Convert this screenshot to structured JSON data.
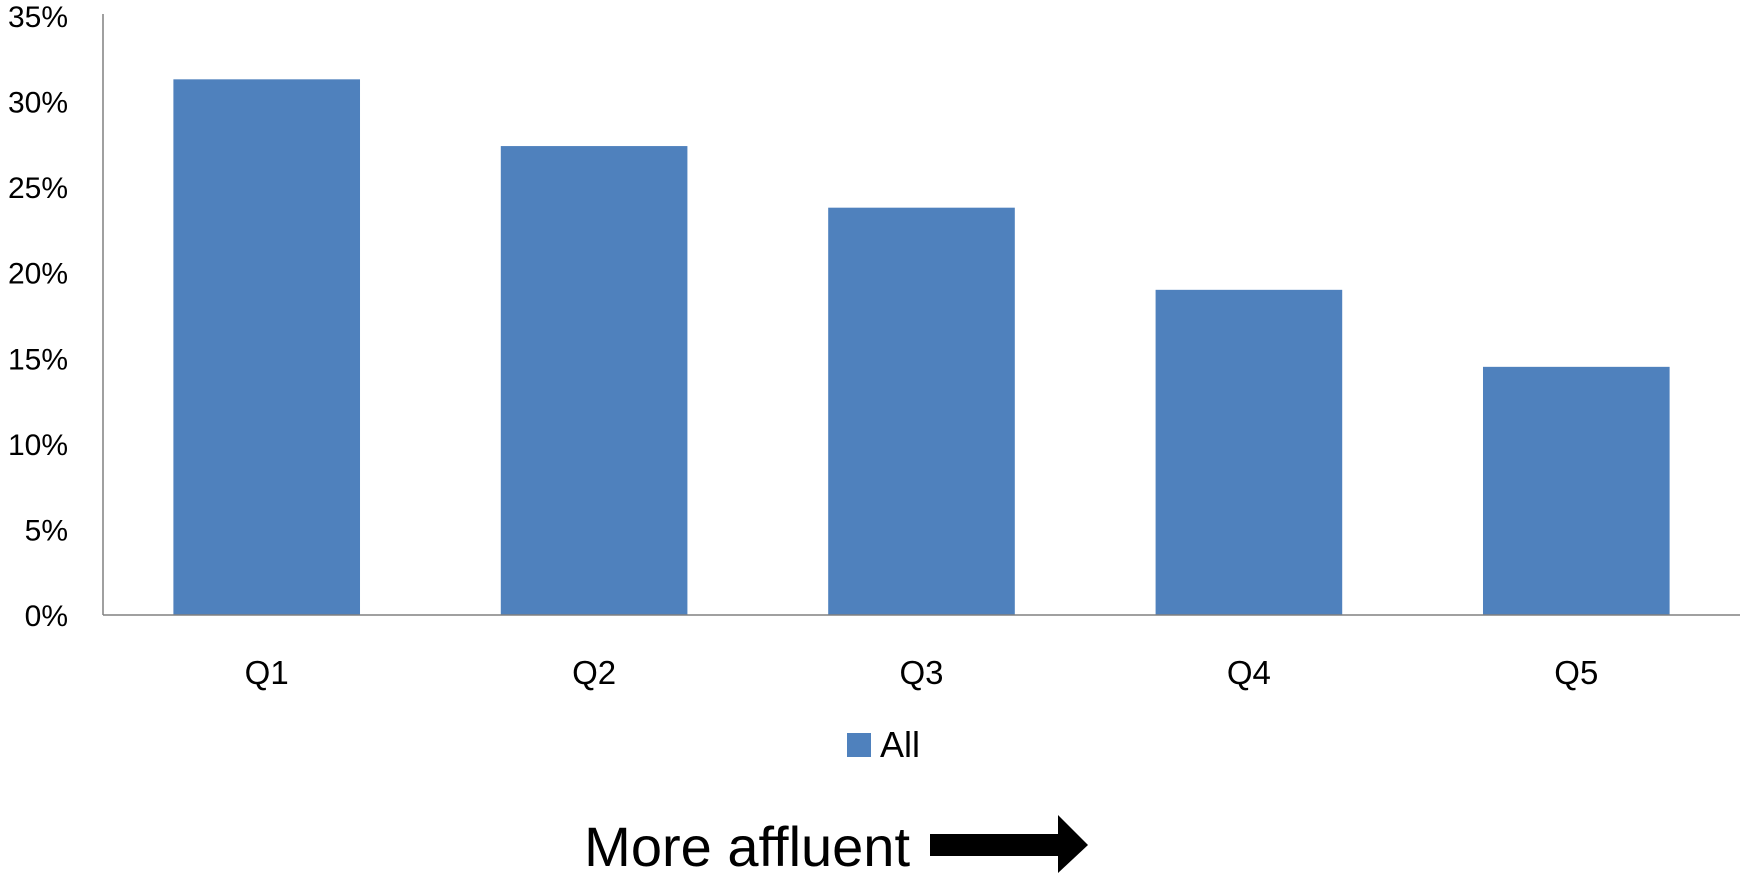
{
  "chart_data": {
    "type": "bar",
    "categories": [
      "Q1",
      "Q2",
      "Q3",
      "Q4",
      "Q5"
    ],
    "series": [
      {
        "name": "All",
        "values": [
          31.3,
          27.4,
          23.8,
          19.0,
          14.5
        ],
        "color": "#4f81bd"
      }
    ],
    "ylim": [
      0,
      35
    ],
    "yticks": [
      0,
      5,
      10,
      15,
      20,
      25,
      30,
      35
    ],
    "ytick_suffix": "%",
    "grid": false,
    "legend_placement": "bottom-center",
    "title": "",
    "xlabel": "",
    "ylabel": "",
    "annotation": {
      "text": "More affluent",
      "icon": "right-arrow-icon"
    }
  }
}
